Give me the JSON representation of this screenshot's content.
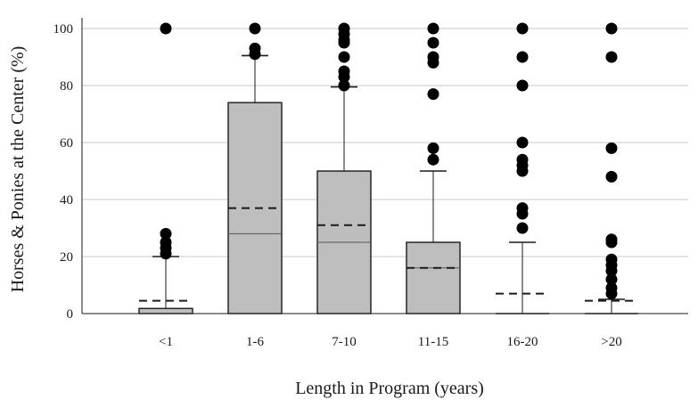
{
  "chart_data": {
    "type": "box",
    "title": "",
    "xlabel": "Length in Program (years)",
    "ylabel": "Horses & Ponies at the Center (%)",
    "ylim": [
      0,
      100
    ],
    "yticks": [
      0,
      20,
      40,
      60,
      80,
      100
    ],
    "grid": true,
    "categories": [
      "<1",
      "1-6",
      "7-10",
      "11-15",
      "16-20",
      ">20"
    ],
    "boxes": [
      {
        "q1": 0,
        "median": 0,
        "q3": 1.8,
        "whisker_low": 0,
        "whisker_high": 20,
        "mean": 4.5,
        "outliers": [
          21,
          23,
          25,
          28,
          100
        ]
      },
      {
        "q1": 0,
        "median": 28,
        "q3": 74,
        "whisker_low": 0,
        "whisker_high": 90.5,
        "mean": 37,
        "outliers": [
          91,
          93,
          100
        ]
      },
      {
        "q1": 0,
        "median": 25,
        "q3": 50,
        "whisker_low": 0,
        "whisker_high": 79.5,
        "mean": 31,
        "outliers": [
          80,
          83,
          85,
          90,
          95,
          96,
          98,
          100
        ]
      },
      {
        "q1": 0,
        "median": 16,
        "q3": 25,
        "whisker_low": 0,
        "whisker_high": 50,
        "mean": 16,
        "outliers": [
          54,
          58,
          77,
          88,
          90,
          95,
          100
        ]
      },
      {
        "q1": 0,
        "median": 0,
        "q3": 0,
        "whisker_low": 0,
        "whisker_high": 25,
        "mean": 7,
        "outliers": [
          30,
          35,
          37,
          50,
          52,
          54,
          60,
          80,
          90,
          100
        ]
      },
      {
        "q1": 0,
        "median": 0,
        "q3": 0,
        "whisker_low": 0,
        "whisker_high": 5,
        "mean": 4.5,
        "outliers": [
          7,
          9,
          12,
          15,
          17,
          19,
          25,
          26,
          48,
          58,
          90,
          100
        ]
      }
    ],
    "colors": {
      "box_fill": "#bebebe",
      "stroke": "#1a1a1a",
      "grid": "#c8c8c8",
      "outlier": "#000000"
    }
  }
}
